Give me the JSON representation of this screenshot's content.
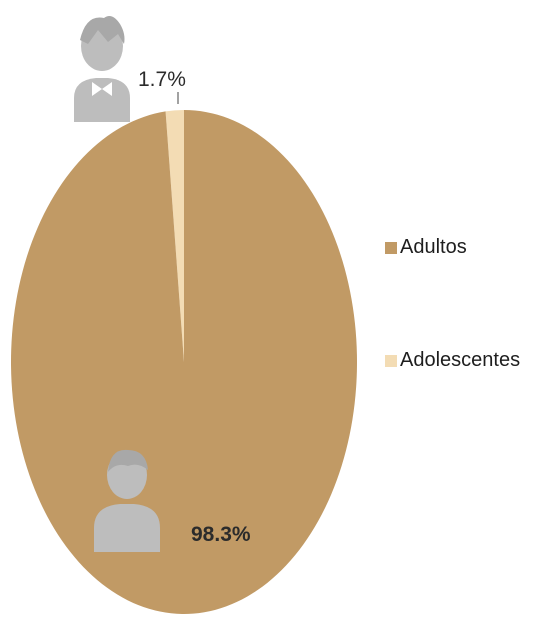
{
  "chart_data": {
    "type": "pie",
    "title": "",
    "slices": [
      {
        "name": "Adultos",
        "value": 98.3,
        "label": "98.3%",
        "color": "#c19a65"
      },
      {
        "name": "Adolescentes",
        "value": 1.7,
        "label": "1.7%",
        "color": "#f3dcb4"
      }
    ],
    "legend_position": "right"
  },
  "icons": {
    "adult_icon": "person-icon",
    "adolescent_icon": "person-bowtie-icon",
    "icon_color": "#bdbdbd"
  }
}
